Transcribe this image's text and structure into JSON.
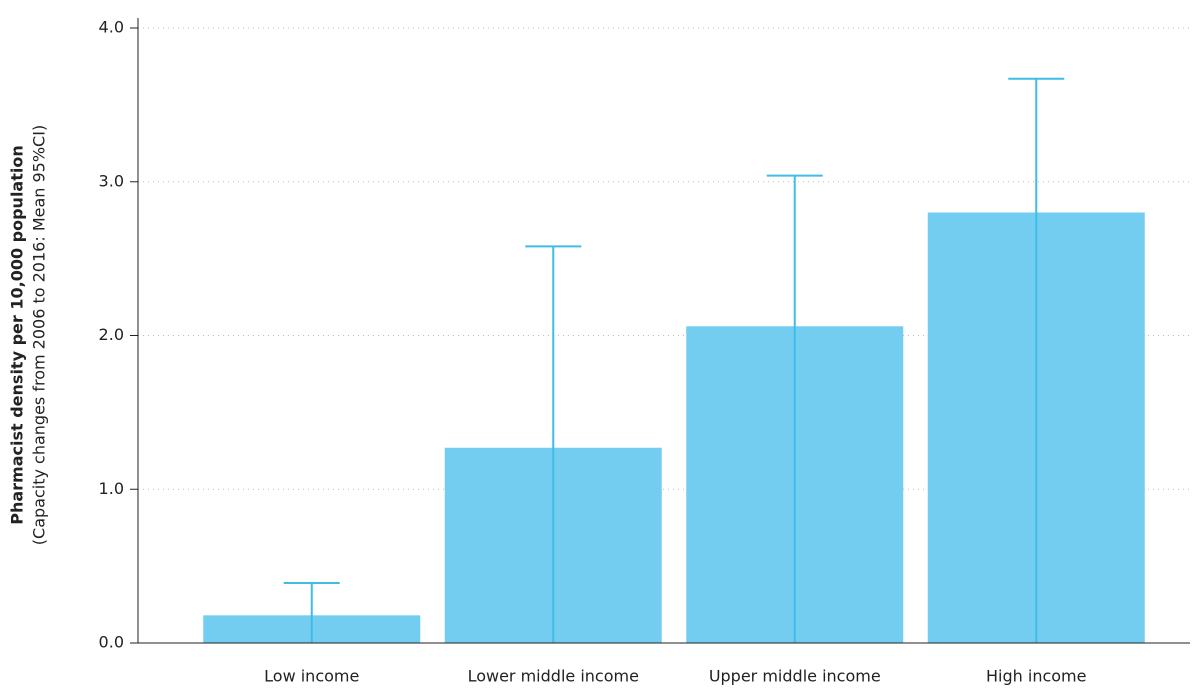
{
  "chart_data": {
    "type": "bar",
    "y_label": "Pharmacist density per 10,000 population",
    "y_label_sub": "(Capacity changes from 2006 to 2016: Mean 95%CI)",
    "categories": [
      "Low income",
      "Lower middle income",
      "Upper middle income",
      "High income"
    ],
    "values": [
      0.18,
      1.27,
      2.06,
      2.8
    ],
    "errors": [
      0.21,
      1.31,
      0.98,
      0.87
    ],
    "color": "#72cdf1",
    "error_color": "#3ebde9",
    "ylim": [
      0,
      4
    ],
    "yticks": [
      {
        "value": 0,
        "label": "0.0"
      },
      {
        "value": 1,
        "label": "1.0"
      },
      {
        "value": 2,
        "label": "2.0"
      },
      {
        "value": 3,
        "label": "3.0"
      },
      {
        "value": 4,
        "label": "4.0"
      }
    ],
    "grid": true
  }
}
